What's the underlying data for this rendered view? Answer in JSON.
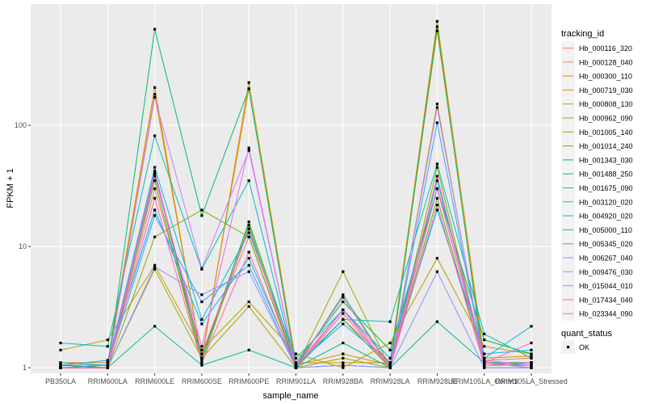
{
  "chart_data": {
    "type": "line",
    "xlabel": "sample_name",
    "ylabel": "FPKM + 1",
    "y_scale": "log10",
    "ylim": [
      0.9,
      1000
    ],
    "y_ticks": [
      {
        "value": 1,
        "label": "1"
      },
      {
        "value": 10,
        "label": "10"
      },
      {
        "value": 100,
        "label": "100"
      }
    ],
    "grid": true,
    "panel_background": "#ebebeb",
    "legend_placement": "right",
    "categories": [
      "PB350LA",
      "RRIM600LA",
      "RRIM600LE",
      "RRIM600SE",
      "RRIM600PE",
      "RRIM901LA",
      "RRIM928BA",
      "RRIM928LA",
      "RRIM928LE",
      "RRIM105LA_Control",
      "RRIM105LA_Stressed"
    ],
    "color_legend": {
      "title": "tracking_id"
    },
    "point_legend": {
      "title": "quant_status",
      "entries": [
        "OK"
      ]
    },
    "series": [
      {
        "name": "Hb_000116_320",
        "color": "#f8766d",
        "values": [
          1.05,
          1.0,
          30,
          1.3,
          12,
          1.05,
          2.5,
          1.1,
          30,
          1.1,
          1.1
        ]
      },
      {
        "name": "Hb_000128_040",
        "color": "#f07e4c",
        "values": [
          1.05,
          1.05,
          40,
          1.2,
          14,
          1.05,
          3.0,
          1.1,
          35,
          1.15,
          1.2
        ]
      },
      {
        "name": "Hb_000300_110",
        "color": "#e38900",
        "values": [
          1.1,
          1.1,
          205,
          1.15,
          225,
          1.1,
          1.1,
          1.1,
          720,
          1.2,
          1.25
        ]
      },
      {
        "name": "Hb_000719_030",
        "color": "#d29200",
        "values": [
          1.0,
          1.05,
          180,
          1.2,
          200,
          1.05,
          1.3,
          1.05,
          600,
          1.1,
          1.1
        ]
      },
      {
        "name": "Hb_000808_130",
        "color": "#bb9d00",
        "values": [
          1.4,
          1.7,
          7.0,
          1.4,
          3.5,
          1.3,
          1.0,
          1.6,
          8.0,
          1.5,
          1.3
        ]
      },
      {
        "name": "Hb_000962_090",
        "color": "#a3a500",
        "values": [
          1.0,
          1.0,
          6.5,
          1.2,
          3.2,
          1.0,
          6.2,
          1.0,
          150,
          1.05,
          1.1
        ]
      },
      {
        "name": "Hb_001005_140",
        "color": "#85ad00",
        "values": [
          1.0,
          1.0,
          12,
          20,
          12,
          1.0,
          1.2,
          1.0,
          45,
          1.1,
          1.0
        ]
      },
      {
        "name": "Hb_001014_240",
        "color": "#53b400",
        "values": [
          1.0,
          1.0,
          35,
          1.1,
          15,
          1.0,
          2.5,
          1.0,
          25,
          1.05,
          1.05
        ]
      },
      {
        "name": "Hb_001343_030",
        "color": "#00ba38",
        "values": [
          1.05,
          1.0,
          40,
          1.2,
          16,
          1.1,
          3.5,
          1.4,
          30,
          1.7,
          1.3
        ]
      },
      {
        "name": "Hb_001488_250",
        "color": "#00be6b",
        "values": [
          1.0,
          1.0,
          620,
          18,
          200,
          1.0,
          4.0,
          1.0,
          650,
          1.0,
          1.0
        ]
      },
      {
        "name": "Hb_001675_090",
        "color": "#00c094",
        "values": [
          1.0,
          1.0,
          2.2,
          1.05,
          1.4,
          1.0,
          1.6,
          1.0,
          2.4,
          1.1,
          1.1
        ]
      },
      {
        "name": "Hb_003120_020",
        "color": "#00c0b8",
        "values": [
          1.6,
          1.5,
          82,
          6.5,
          35,
          1.0,
          2.5,
          2.4,
          48,
          1.9,
          1.2
        ]
      },
      {
        "name": "Hb_004920_020",
        "color": "#00bcd6",
        "values": [
          1.1,
          1.05,
          45,
          2.5,
          13,
          1.2,
          3.0,
          1.2,
          35,
          1.2,
          2.2
        ]
      },
      {
        "name": "Hb_005000_110",
        "color": "#00b4ef",
        "values": [
          1.05,
          1.15,
          20,
          2.3,
          8,
          1.05,
          2.3,
          1.1,
          20,
          1.3,
          1.4
        ]
      },
      {
        "name": "Hb_005345_020",
        "color": "#35a2ff",
        "values": [
          1.0,
          1.05,
          18,
          3.5,
          7,
          1.0,
          1.05,
          1.0,
          105,
          1.1,
          1.05
        ]
      },
      {
        "name": "Hb_006267_040",
        "color": "#8f91ff",
        "values": [
          1.0,
          1.0,
          6.8,
          4.0,
          6.2,
          1.0,
          1.05,
          1.0,
          6.2,
          1.0,
          1.0
        ]
      },
      {
        "name": "Hb_009476_030",
        "color": "#c77cff",
        "values": [
          1.0,
          1.0,
          170,
          6.6,
          62,
          1.0,
          3.0,
          1.0,
          140,
          1.1,
          1.0
        ]
      },
      {
        "name": "Hb_015044_010",
        "color": "#e76bf3",
        "values": [
          1.0,
          1.0,
          38,
          1.5,
          65,
          1.0,
          3.0,
          1.0,
          30,
          1.15,
          1.05
        ]
      },
      {
        "name": "Hb_017434_040",
        "color": "#fc61d5",
        "values": [
          1.0,
          1.0,
          42,
          1.3,
          14,
          1.05,
          3.8,
          1.0,
          38,
          1.1,
          1.6
        ]
      },
      {
        "name": "Hb_023344_090",
        "color": "#ff65ae",
        "values": [
          1.0,
          1.0,
          25,
          1.1,
          9,
          1.0,
          2.8,
          1.0,
          22,
          1.05,
          1.1
        ]
      }
    ]
  }
}
